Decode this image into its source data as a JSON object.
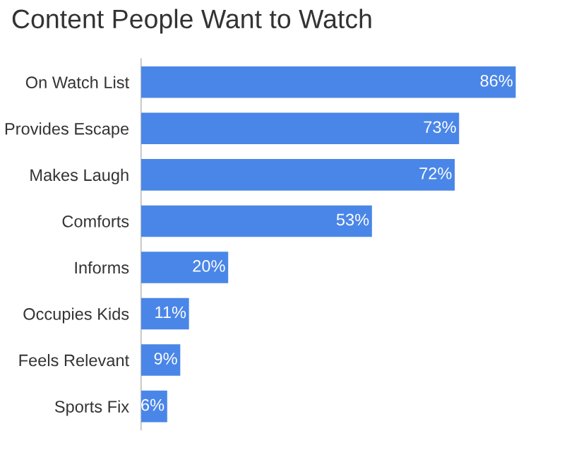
{
  "chart_data": {
    "type": "bar",
    "orientation": "horizontal",
    "title": "Content People Want to Watch",
    "categories": [
      "On Watch List",
      "Provides Escape",
      "Makes Laugh",
      "Comforts",
      "Informs",
      "Occupies Kids",
      "Feels Relevant",
      "Sports Fix"
    ],
    "values": [
      86,
      73,
      72,
      53,
      20,
      11,
      9,
      6
    ],
    "value_labels": [
      "86%",
      "73%",
      "72%",
      "53%",
      "20%",
      "11%",
      "9%",
      "6%"
    ],
    "color": "#4a86e8",
    "grid": false,
    "legend": false
  }
}
